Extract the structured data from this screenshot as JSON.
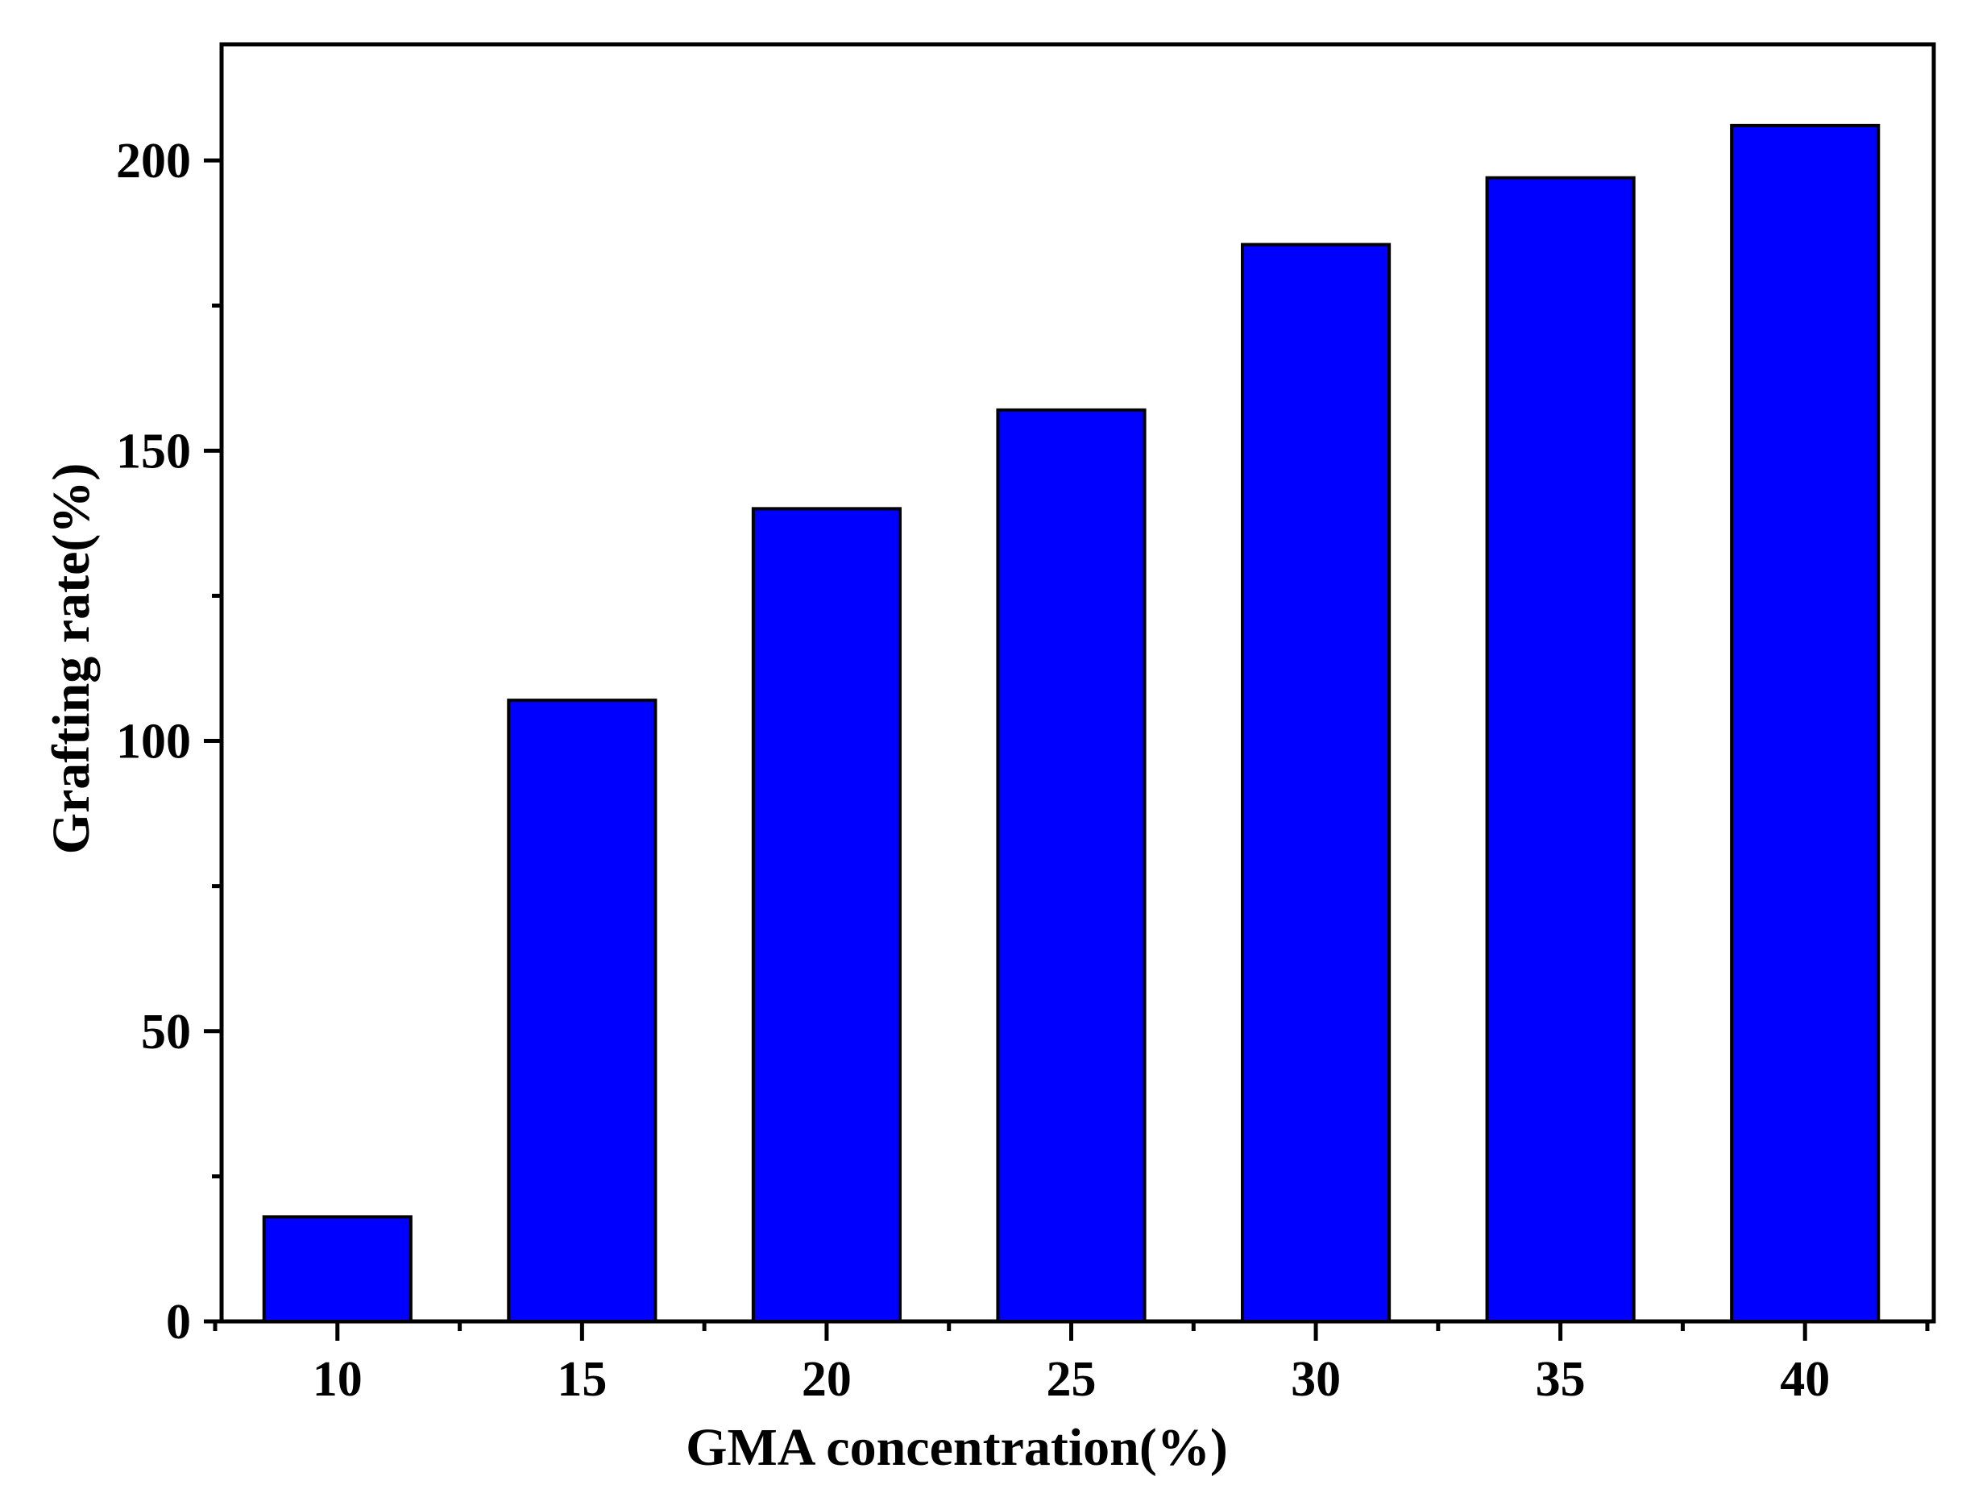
{
  "chart_data": {
    "type": "bar",
    "title": "",
    "xlabel": "GMA concentration(%)",
    "ylabel": "Grafting rate(%)",
    "categories": [
      "10",
      "15",
      "20",
      "25",
      "30",
      "35",
      "40"
    ],
    "values": [
      18,
      107,
      140,
      157,
      185.5,
      197,
      206
    ],
    "ylim": [
      0,
      220
    ],
    "yticks": [
      0,
      50,
      100,
      150,
      200
    ],
    "ytick_labels": [
      "0",
      "50",
      "100",
      "150",
      "200"
    ],
    "y_minor_step": 25,
    "grid": false,
    "legend": "none",
    "bar_color": "#0000ff",
    "bar_edge_color": "#000000"
  }
}
